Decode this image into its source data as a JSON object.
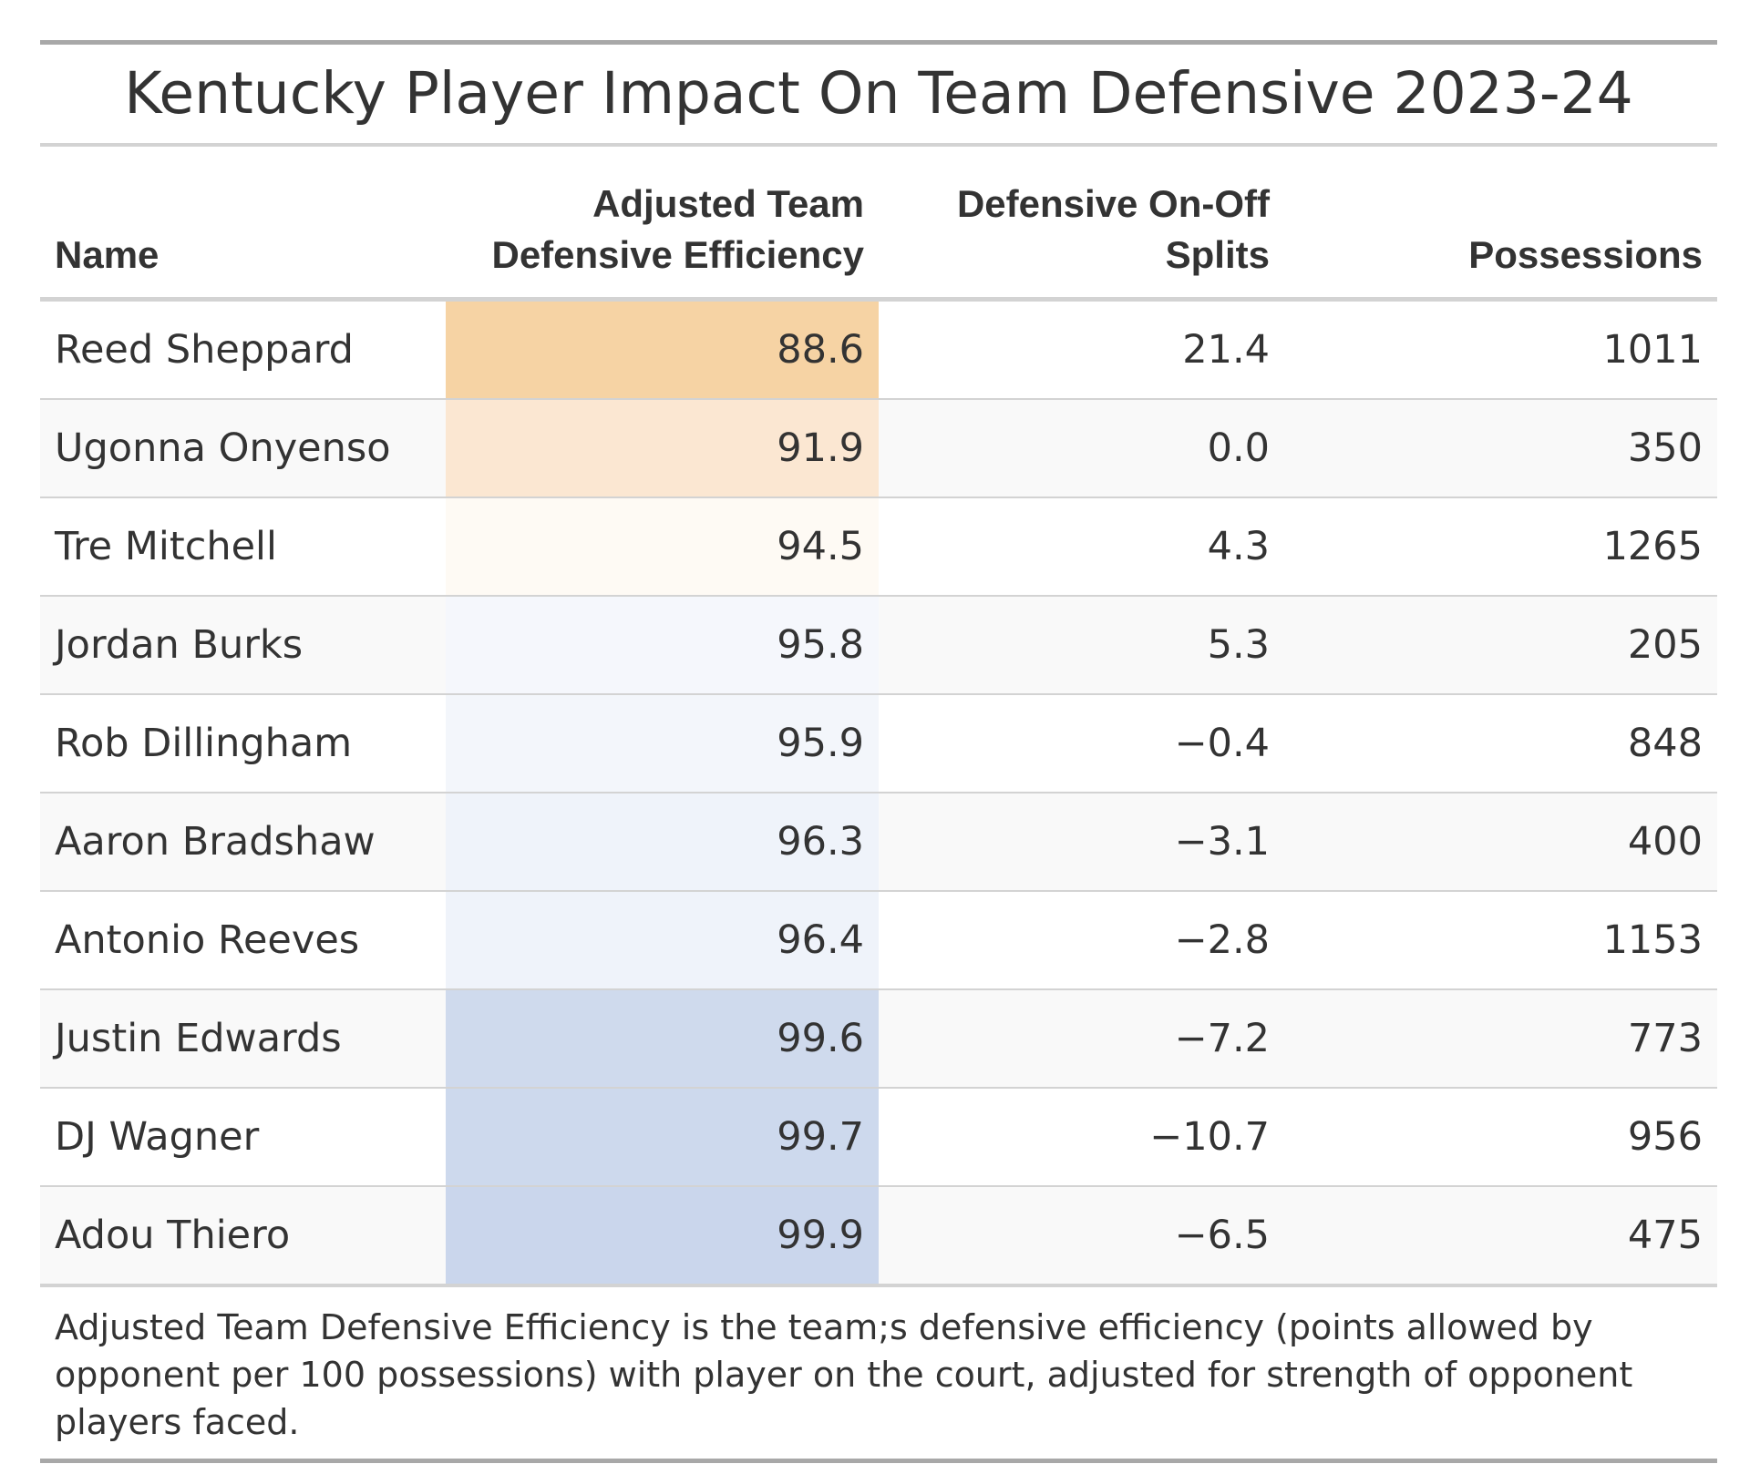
{
  "chart_data": {
    "type": "table",
    "title": "Kentucky Player Impact On Team Defensive 2023-24",
    "columns": [
      "Name",
      "Adjusted Team Defensive Efficiency",
      "Defensive On-Off Splits",
      "Possessions"
    ],
    "header_lines": {
      "name": [
        "Name"
      ],
      "adj": [
        "Adjusted Team",
        "Defensive Efficiency"
      ],
      "split": [
        "Defensive On-Off",
        "Splits"
      ],
      "poss": [
        "Possessions"
      ]
    },
    "rows": [
      {
        "name": "Reed Sheppard",
        "adj": "88.6",
        "split": "21.4",
        "poss": "1011",
        "shade": "#f6d3a4"
      },
      {
        "name": "Ugonna Onyenso",
        "adj": "91.9",
        "split": "0.0",
        "poss": "350",
        "shade": "#fbe7d2"
      },
      {
        "name": "Tre Mitchell",
        "adj": "94.5",
        "split": "4.3",
        "poss": "1265",
        "shade": "#fefaf4"
      },
      {
        "name": "Jordan Burks",
        "adj": "95.8",
        "split": "5.3",
        "poss": "205",
        "shade": "#f5f7fc"
      },
      {
        "name": "Rob Dillingham",
        "adj": "95.9",
        "split": "−0.4",
        "poss": "848",
        "shade": "#f3f6fb"
      },
      {
        "name": "Aaron Bradshaw",
        "adj": "96.3",
        "split": "−3.1",
        "poss": "400",
        "shade": "#eff3fa"
      },
      {
        "name": "Antonio Reeves",
        "adj": "96.4",
        "split": "−2.8",
        "poss": "1153",
        "shade": "#eff3fa"
      },
      {
        "name": "Justin Edwards",
        "adj": "99.6",
        "split": "−7.2",
        "poss": "773",
        "shade": "#cfdaed"
      },
      {
        "name": "DJ Wagner",
        "adj": "99.7",
        "split": "−10.7",
        "poss": "956",
        "shade": "#cdd9ed"
      },
      {
        "name": "Adou Thiero",
        "adj": "99.9",
        "split": "−6.5",
        "poss": "475",
        "shade": "#cad6ec"
      }
    ],
    "footnote": "Adjusted Team Defensive Efficiency is the team;s defensive efficiency (points allowed by opponent per 100 possessions) with player on the court, adjusted for strength of opponent players faced."
  }
}
